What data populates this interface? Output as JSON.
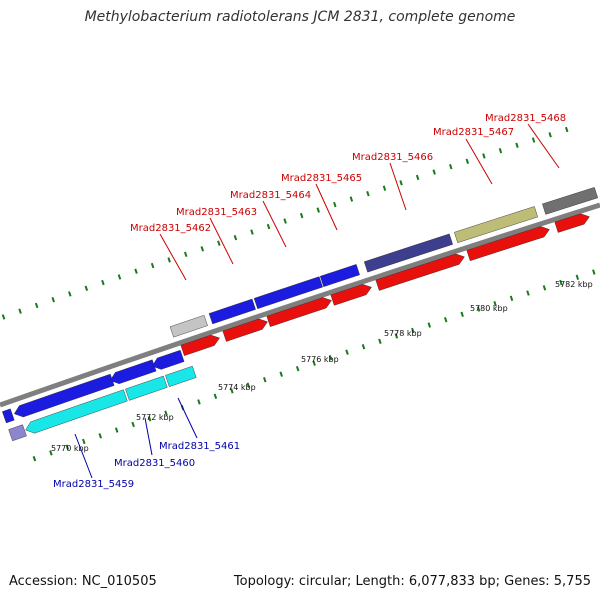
{
  "title": "Methylobacterium radiotolerans JCM 2831, complete genome",
  "footer": {
    "accession": "Accession: NC_010505",
    "summary": "Topology: circular; Length: 6,077,833 bp; Genes: 5,755"
  },
  "colors": {
    "backbone": "#7f7f7f",
    "tick": "#1a7a1a",
    "forward_label": "#cc0000",
    "reverse_label": "#0000aa",
    "red_feature": "#e8100c",
    "blue_feature": "#1c1ce0",
    "cyan_feature": "#19e6e6",
    "slate_feature": "#3e3e8e",
    "khaki_feature": "#bdbd78",
    "grey_feature": "#c4c4c4",
    "darkgrey_feature": "#707070",
    "lavender_feature": "#8c86cf"
  },
  "scale": {
    "labels": [
      "5770 kbp",
      "5772 kbp",
      "5774 kbp",
      "5776 kbp",
      "5778 kbp",
      "5780 kbp",
      "5782 kbp"
    ]
  },
  "gene_labels": {
    "forward": [
      "Mrad2831_5462",
      "Mrad2831_5463",
      "Mrad2831_5464",
      "Mrad2831_5465",
      "Mrad2831_5466",
      "Mrad2831_5467",
      "Mrad2831_5468"
    ],
    "reverse": [
      "Mrad2831_5459",
      "Mrad2831_5460",
      "Mrad2831_5461"
    ]
  }
}
